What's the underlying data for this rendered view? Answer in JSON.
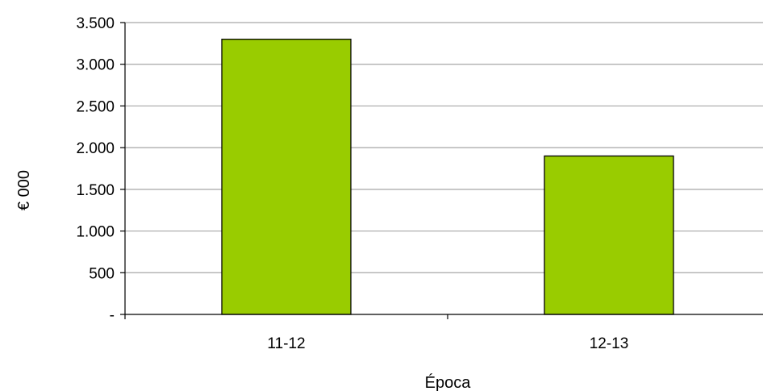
{
  "chart_data": {
    "type": "bar",
    "categories": [
      "11-12",
      "12-13"
    ],
    "values": [
      3300,
      1900
    ],
    "xlabel": "Época",
    "ylabel": "€ 000",
    "ylim": [
      0,
      3500
    ],
    "yticks": [
      0,
      500,
      1000,
      1500,
      2000,
      2500,
      3000,
      3500
    ],
    "ytick_labels": [
      "-",
      "500",
      "1.000",
      "1.500",
      "2.000",
      "2.500",
      "3.000",
      "3.500"
    ],
    "grid": true,
    "legend": "none",
    "colors": {
      "bar_fill": "#99CC00",
      "bar_stroke": "#000000",
      "grid": "#A6A6A6",
      "axis": "#000000"
    }
  }
}
